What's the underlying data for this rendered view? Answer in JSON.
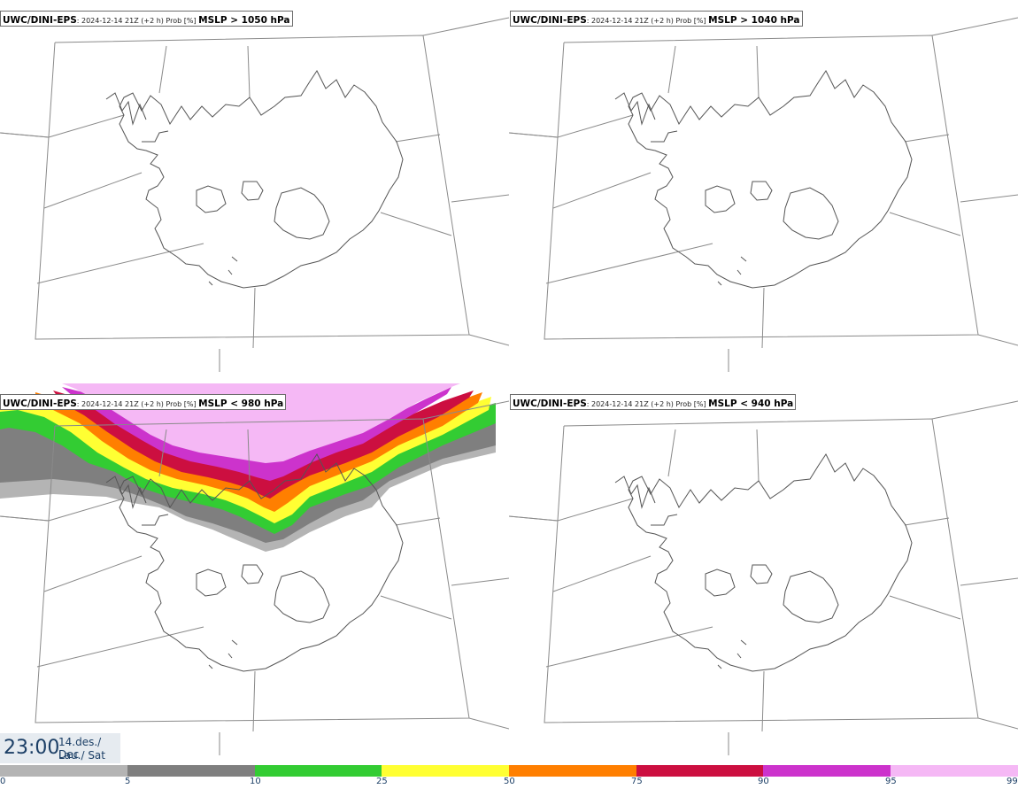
{
  "panels": [
    {
      "model": "UWC/DINI-EPS",
      "meta": ": 2024-12-14 21Z (+2 h) Prob [%] ",
      "threshold": "MSLP > 1050 hPa"
    },
    {
      "model": "UWC/DINI-EPS",
      "meta": ": 2024-12-14 21Z (+2 h) Prob [%] ",
      "threshold": "MSLP > 1040 hPa"
    },
    {
      "model": "UWC/DINI-EPS",
      "meta": ": 2024-12-14 21Z (+2 h) Prob [%] ",
      "threshold": "MSLP < 980 hPa"
    },
    {
      "model": "UWC/DINI-EPS",
      "meta": ": 2024-12-14 21Z (+2 h) Prob [%] ",
      "threshold": "MSLP < 940 hPa"
    }
  ],
  "time": {
    "clock": "23:00",
    "date_line1": "14.des./ Dec",
    "date_line2": "Lau./ Sat"
  },
  "colorbar": {
    "ticks": [
      "0",
      "5",
      "10",
      "25",
      "50",
      "75",
      "90",
      "95",
      "99"
    ],
    "colors": [
      "#ffffff",
      "#b4b4b4",
      "#7f7f7f",
      "#33cc33",
      "#ffff33",
      "#ff7f00",
      "#cc0f40",
      "#cc33cc",
      "#f5b8f5"
    ]
  },
  "colors": {
    "coast": "#555555",
    "borders": "#8a8a8a",
    "text": "#1c3f66"
  }
}
